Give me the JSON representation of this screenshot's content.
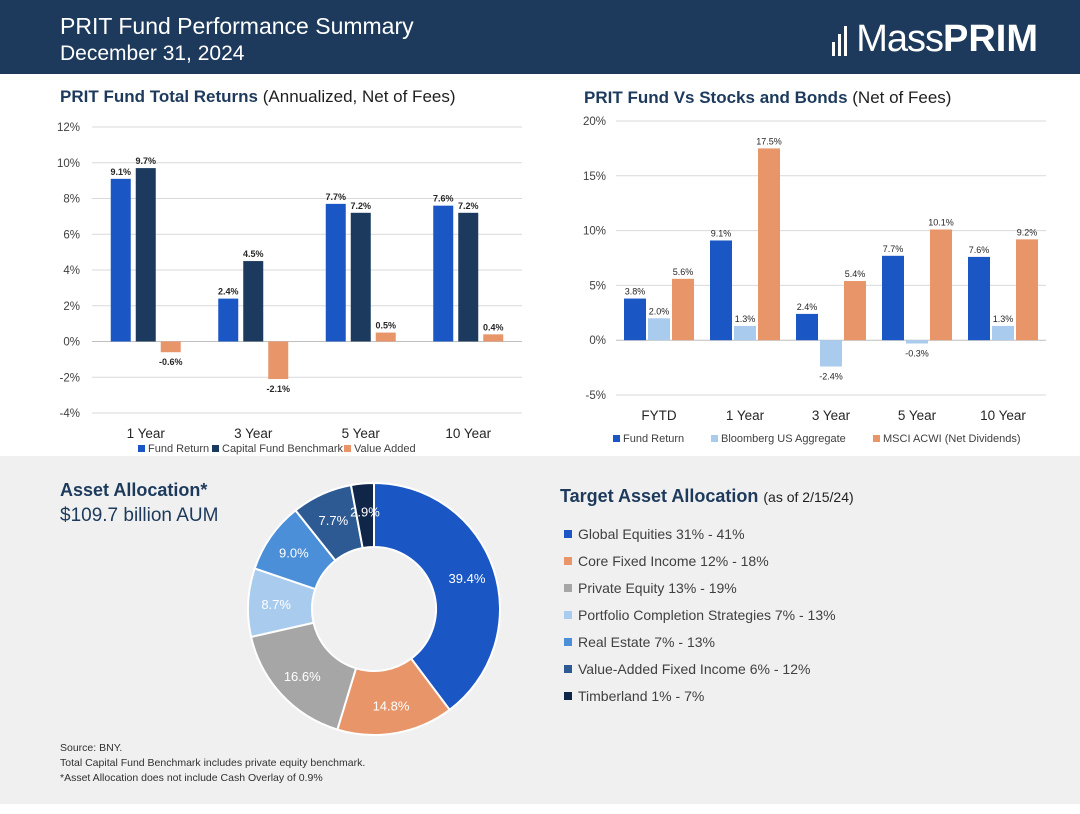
{
  "header": {
    "title": "PRIT Fund Performance Summary",
    "subtitle": "December 31, 2024",
    "logo_light": "Mass",
    "logo_bold": "PRIM"
  },
  "colors": {
    "navy": "#1d3a5c",
    "fund_return": "#1a56c4",
    "benchmark": "#1b3a5e",
    "value_added": "#e8956a",
    "bloomberg": "#a9cbee",
    "msci": "#e8956a"
  },
  "chart_data": [
    {
      "type": "bar",
      "title": "PRIT Fund Total Returns",
      "title_suffix": "(Annualized, Net of Fees)",
      "categories": [
        "1 Year",
        "3 Year",
        "5 Year",
        "10 Year"
      ],
      "series": [
        {
          "name": "Fund Return",
          "values": [
            9.1,
            2.4,
            7.7,
            7.6
          ],
          "labels": [
            "9.1%",
            "2.4%",
            "7.7%",
            "7.6%"
          ]
        },
        {
          "name": "Capital Fund Benchmark",
          "values": [
            9.7,
            4.5,
            7.2,
            7.2
          ],
          "labels": [
            "9.7%",
            "4.5%",
            "7.2%",
            "7.2%"
          ]
        },
        {
          "name": "Value Added",
          "values": [
            -0.6,
            -2.1,
            0.5,
            0.4
          ],
          "labels": [
            "-0.6%",
            "-2.1%",
            "0.5%",
            "0.4%"
          ]
        }
      ],
      "ylim": [
        -4,
        12
      ],
      "yticks": [
        12,
        10,
        8,
        6,
        4,
        2,
        0,
        -2,
        -4
      ],
      "ytick_labels": [
        "12%",
        "10%",
        "8%",
        "6%",
        "4%",
        "2%",
        "0%",
        "-2%",
        "-4%"
      ],
      "legend": "bottom",
      "grid": true
    },
    {
      "type": "bar",
      "title": "PRIT Fund Vs Stocks and Bonds",
      "title_suffix": "(Net of Fees)",
      "categories": [
        "FYTD",
        "1 Year",
        "3 Year",
        "5 Year",
        "10 Year"
      ],
      "series": [
        {
          "name": "Fund Return",
          "values": [
            3.8,
            9.1,
            2.4,
            7.7,
            7.6
          ],
          "labels": [
            "3.8%",
            "9.1%",
            "2.4%",
            "7.7%",
            "7.6%"
          ]
        },
        {
          "name": "Bloomberg US Aggregate",
          "values": [
            2.0,
            1.3,
            -2.4,
            -0.3,
            1.3
          ],
          "labels": [
            "2.0%",
            "1.3%",
            "-2.4%",
            "-0.3%",
            "1.3%"
          ]
        },
        {
          "name": "MSCI ACWI (Net Dividends)",
          "values": [
            5.6,
            17.5,
            5.4,
            10.1,
            9.2
          ],
          "labels": [
            "5.6%",
            "17.5%",
            "5.4%",
            "10.1%",
            "9.2%"
          ]
        }
      ],
      "ylim": [
        -5,
        20
      ],
      "yticks": [
        20,
        15,
        10,
        5,
        0,
        -5
      ],
      "ytick_labels": [
        "20%",
        "15%",
        "10%",
        "5%",
        "0%",
        "-5%"
      ],
      "legend": "bottom",
      "grid": true
    },
    {
      "type": "pie",
      "title": "Asset Allocation*",
      "subtitle": "$109.7 billion AUM",
      "slices": [
        {
          "name": "Global Equities",
          "value": 39.4,
          "label": "39.4%",
          "color": "#1a56c4"
        },
        {
          "name": "Core Fixed Income",
          "value": 14.8,
          "label": "14.8%",
          "color": "#e8956a"
        },
        {
          "name": "Private Equity",
          "value": 16.6,
          "label": "16.6%",
          "color": "#a6a6a6"
        },
        {
          "name": "Portfolio Completion Strategies",
          "value": 8.7,
          "label": "8.7%",
          "color": "#a9cbee"
        },
        {
          "name": "Real Estate",
          "value": 9.0,
          "label": "9.0%",
          "color": "#4a8fd8"
        },
        {
          "name": "Value-Added Fixed Income",
          "value": 7.7,
          "label": "7.7%",
          "color": "#2e5a94"
        },
        {
          "name": "Timberland",
          "value": 2.9,
          "label": "2.9%",
          "color": "#0f2648"
        }
      ]
    }
  ],
  "target": {
    "title": "Target Asset Allocation",
    "as_of": "(as of 2/15/24)",
    "items": [
      {
        "label": "Global Equities 31% - 41%",
        "color": "#1a56c4"
      },
      {
        "label": "Core Fixed Income 12% - 18%",
        "color": "#e8956a"
      },
      {
        "label": "Private Equity 13% - 19%",
        "color": "#a6a6a6"
      },
      {
        "label": "Portfolio Completion Strategies 7% - 13%",
        "color": "#a9cbee"
      },
      {
        "label": "Real Estate 7% - 13%",
        "color": "#4a8fd8"
      },
      {
        "label": "Value-Added Fixed Income 6% - 12%",
        "color": "#2e5a94"
      },
      {
        "label": "Timberland 1% - 7%",
        "color": "#0f2648"
      }
    ]
  },
  "notes": [
    "Source: BNY.",
    "Total Capital Fund Benchmark includes private equity benchmark.",
    "*Asset Allocation does not include Cash Overlay of 0.9%"
  ]
}
